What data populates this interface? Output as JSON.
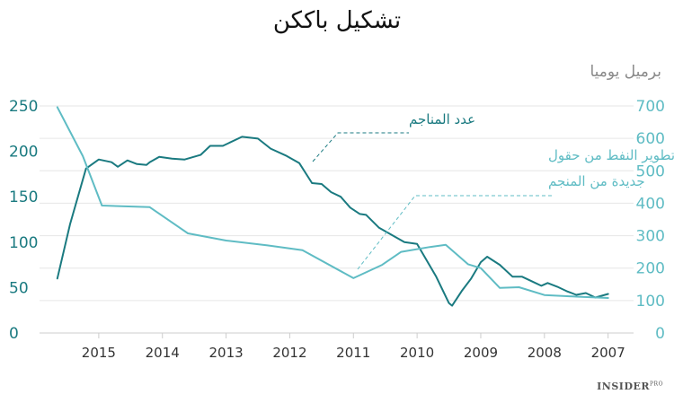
{
  "header": {
    "title": "تشكيل باككن",
    "unit_label": "برميل يوميا"
  },
  "branding": {
    "logo": "INSIDER",
    "logo_sup": "PRO"
  },
  "colors": {
    "rigs": "#1a7a80",
    "production": "#5fbcc4",
    "grid": "#e6e6e6",
    "axis": "#cccccc"
  },
  "chart_data": {
    "type": "line",
    "title": "تشكيل باككن",
    "x_axis": {
      "reversed": true,
      "ticks": [
        2015,
        2014,
        2013,
        2012,
        2011,
        2010,
        2009,
        2008,
        2007
      ],
      "lim": [
        2006.6,
        2015.93
      ]
    },
    "y_left": {
      "lim": [
        0,
        250
      ],
      "ticks": [
        0,
        50,
        100,
        150,
        200,
        250
      ]
    },
    "y_right": {
      "lim": [
        0,
        700
      ],
      "ticks": [
        0,
        100,
        200,
        300,
        400,
        500,
        600,
        700
      ],
      "label": "برميل يوميا"
    },
    "grid": true,
    "series": [
      {
        "name": "عدد المناجم",
        "axis": "left",
        "color": "#1a7a80",
        "x": [
          2007.0,
          2007.2,
          2007.35,
          2007.5,
          2007.65,
          2007.8,
          2007.95,
          2008.05,
          2008.2,
          2008.35,
          2008.5,
          2008.7,
          2008.9,
          2009.0,
          2009.15,
          2009.3,
          2009.45,
          2009.5,
          2009.7,
          2010.0,
          2010.2,
          2010.6,
          2010.8,
          2010.9,
          2011.05,
          2011.2,
          2011.35,
          2011.5,
          2011.65,
          2011.85,
          2012.05,
          2012.3,
          2012.5,
          2012.75,
          2013.05,
          2013.25,
          2013.4,
          2013.65,
          2013.85,
          2014.05,
          2014.2,
          2014.25,
          2014.4,
          2014.55,
          2014.7,
          2014.8,
          2015.0,
          2015.2,
          2015.45,
          2015.65
        ],
        "values": [
          43,
          39,
          44,
          42,
          46,
          51,
          55,
          52,
          57,
          62,
          62,
          75,
          84,
          78,
          60,
          46,
          30,
          33,
          62,
          98,
          100,
          116,
          130,
          131,
          138,
          150,
          155,
          164,
          165,
          187,
          195,
          203,
          214,
          216,
          206,
          206,
          196,
          191,
          192,
          194,
          188,
          185,
          186,
          190,
          183,
          188,
          191,
          181,
          120,
          60
        ]
      },
      {
        "name": "تطوير النفط من حقول جديدة من المنجم",
        "axis": "right",
        "color": "#5fbcc4",
        "x": [
          2007.0,
          2007.5,
          2008.0,
          2008.4,
          2008.7,
          2009.0,
          2009.2,
          2009.55,
          2009.8,
          2010.25,
          2010.55,
          2011.0,
          2011.8,
          2012.35,
          2013.0,
          2013.6,
          2014.2,
          2014.95,
          2015.25,
          2015.65
        ],
        "values": [
          108,
          112,
          117,
          141,
          139,
          200,
          212,
          272,
          265,
          250,
          210,
          169,
          255,
          270,
          285,
          307,
          388,
          393,
          545,
          696
        ]
      }
    ],
    "annotations": [
      {
        "text": "عدد المناجم",
        "series": "rigs"
      },
      {
        "text": "تطوير النفط من حقول",
        "series": "production"
      },
      {
        "text": "جديدة من المنجم",
        "series": "production"
      }
    ]
  }
}
